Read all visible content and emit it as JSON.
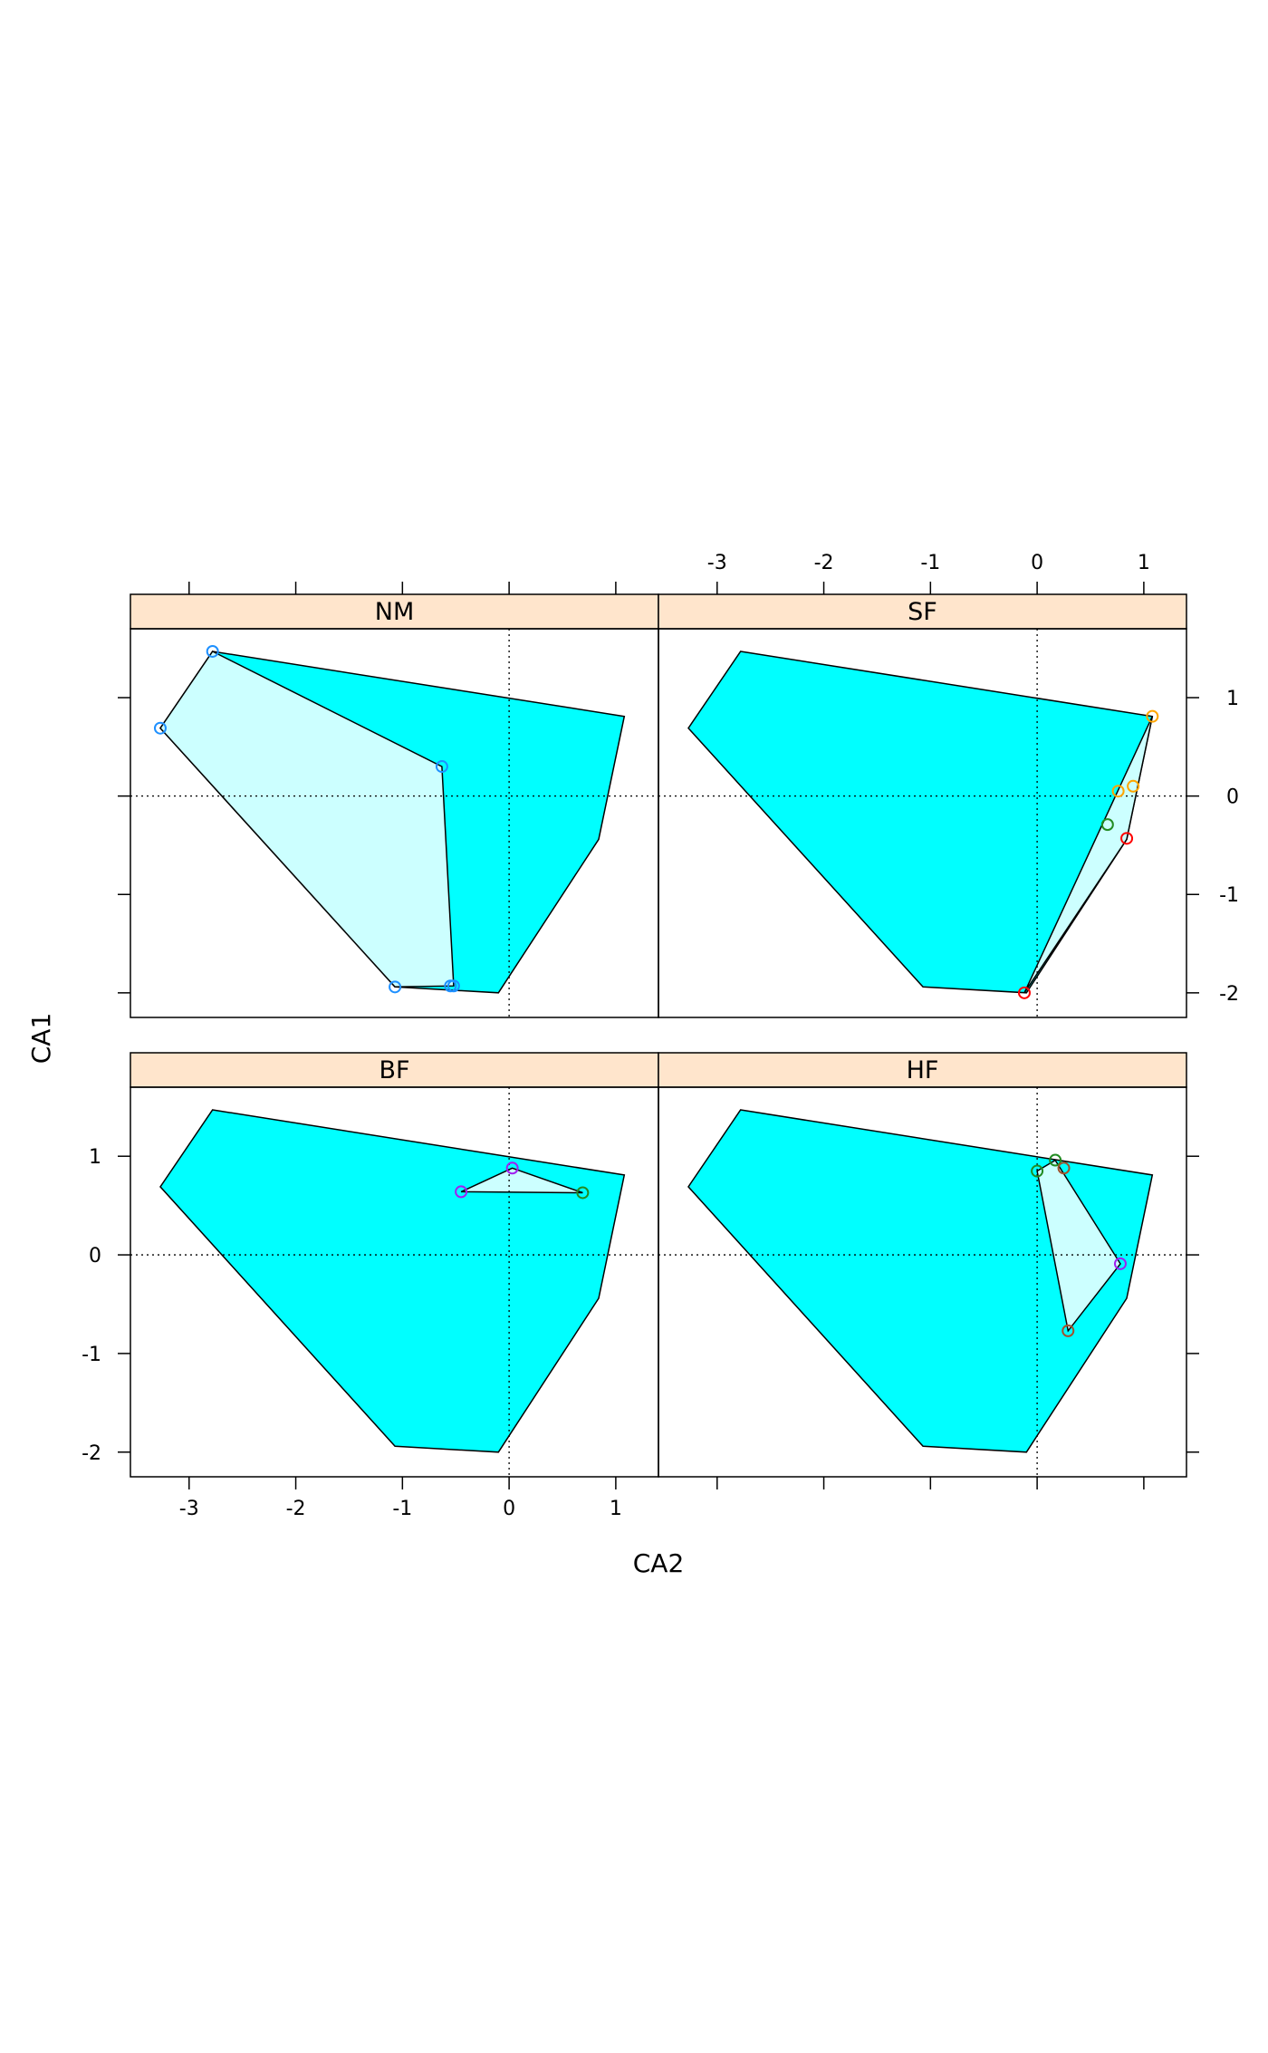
{
  "chart_data": {
    "type": "scatter",
    "xlabel": "CA2",
    "ylabel": "CA1",
    "xlim": [
      -3.55,
      1.4
    ],
    "ylim": [
      -2.25,
      1.7
    ],
    "x_ticks": [
      -3,
      -2,
      -1,
      0,
      1
    ],
    "y_ticks": [
      -2,
      -1,
      0,
      1
    ],
    "reference_lines": {
      "x": 0,
      "y": 0,
      "style": "dotted"
    },
    "grid": false,
    "legend": "none",
    "colors": {
      "strip": "#ffe5cc",
      "outer_hull": "#00ffff",
      "inner_hull": "#ccffff",
      "blue": "#1e90ff",
      "purple": "#a020f0",
      "green": "#228b22",
      "red": "#ff0000",
      "orange": "#ffa500",
      "brown": "#a0522d"
    },
    "outer_hull": [
      [
        -2.78,
        1.47
      ],
      [
        1.08,
        0.81
      ],
      [
        0.84,
        -0.44
      ],
      [
        -0.1,
        -2.0
      ],
      [
        -1.07,
        -1.94
      ],
      [
        -3.27,
        0.69
      ]
    ],
    "panels": [
      {
        "name": "NM",
        "hull": [
          [
            -2.78,
            1.47
          ],
          [
            -0.63,
            0.3
          ],
          [
            -0.52,
            -1.93
          ],
          [
            -1.07,
            -1.94
          ],
          [
            -3.27,
            0.69
          ]
        ],
        "points": [
          {
            "x": -2.78,
            "y": 1.47,
            "color": "blue"
          },
          {
            "x": -3.27,
            "y": 0.69,
            "color": "blue"
          },
          {
            "x": -0.63,
            "y": 0.3,
            "color": "blue"
          },
          {
            "x": -1.07,
            "y": -1.94,
            "color": "blue"
          },
          {
            "x": -0.55,
            "y": -1.93,
            "color": "blue"
          },
          {
            "x": -0.52,
            "y": -1.93,
            "color": "blue"
          }
        ]
      },
      {
        "name": "SF",
        "hull": [
          [
            1.08,
            0.81
          ],
          [
            0.84,
            -0.44
          ],
          [
            -0.12,
            -2.0
          ]
        ],
        "points": [
          {
            "x": 1.08,
            "y": 0.81,
            "color": "orange"
          },
          {
            "x": 0.9,
            "y": 0.1,
            "color": "orange"
          },
          {
            "x": 0.76,
            "y": 0.05,
            "color": "orange"
          },
          {
            "x": 0.66,
            "y": -0.29,
            "color": "green"
          },
          {
            "x": 0.84,
            "y": -0.43,
            "color": "red"
          },
          {
            "x": -0.12,
            "y": -2.0,
            "color": "red"
          }
        ]
      },
      {
        "name": "BF",
        "hull": [
          [
            0.03,
            0.88
          ],
          [
            0.69,
            0.63
          ],
          [
            -0.45,
            0.64
          ]
        ],
        "points": [
          {
            "x": 0.03,
            "y": 0.88,
            "color": "purple"
          },
          {
            "x": -0.45,
            "y": 0.64,
            "color": "purple"
          },
          {
            "x": 0.69,
            "y": 0.63,
            "color": "green"
          }
        ]
      },
      {
        "name": "HF",
        "hull": [
          [
            0.17,
            0.96
          ],
          [
            0.78,
            -0.09
          ],
          [
            0.29,
            -0.77
          ],
          [
            0.0,
            0.85
          ]
        ],
        "points": [
          {
            "x": 0.0,
            "y": 0.85,
            "color": "green"
          },
          {
            "x": 0.17,
            "y": 0.96,
            "color": "green"
          },
          {
            "x": 0.25,
            "y": 0.88,
            "color": "brown"
          },
          {
            "x": 0.78,
            "y": -0.09,
            "color": "purple"
          },
          {
            "x": 0.29,
            "y": -0.77,
            "color": "brown"
          }
        ]
      }
    ]
  }
}
